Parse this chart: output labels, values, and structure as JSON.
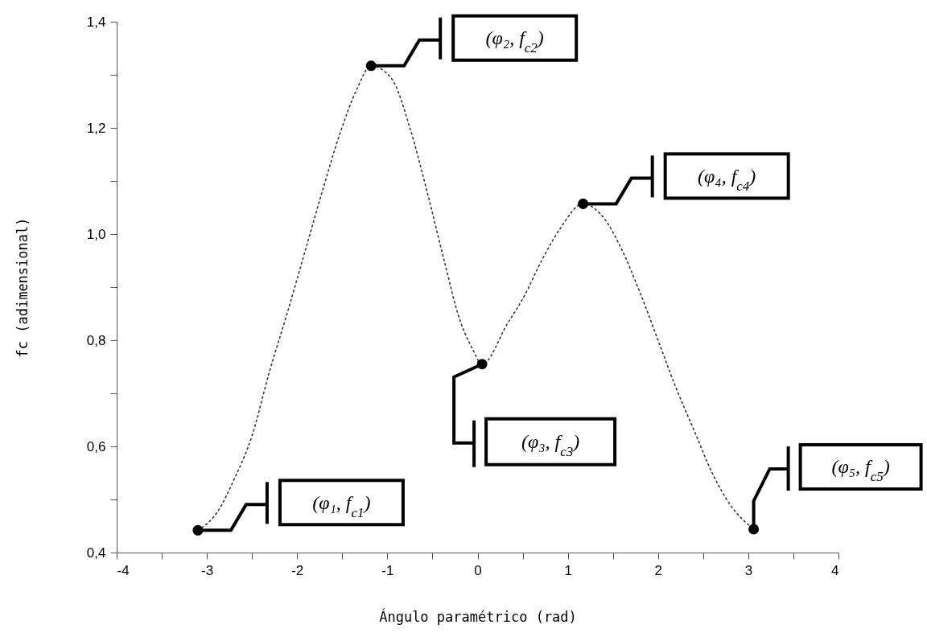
{
  "chart_data": {
    "type": "line",
    "xlabel": "Ángulo paramétrico (rad)",
    "ylabel": "fc (adimensional)",
    "xlim": [
      -4,
      4
    ],
    "xticks": [
      -4,
      {
        "value": -3.5,
        "label": null
      },
      -3,
      {
        "value": -2.5,
        "label": null
      },
      -2,
      {
        "value": -1.5,
        "label": null
      },
      -1,
      {
        "value": -0.5,
        "label": null
      },
      0,
      {
        "value": 0.5,
        "label": null
      },
      1,
      {
        "value": 1.5,
        "label": null
      },
      2,
      {
        "value": 2.5,
        "label": null
      },
      3,
      {
        "value": 3.5,
        "label": null
      },
      4
    ],
    "ylim": [
      0.4,
      1.4
    ],
    "yticks": [
      {
        "value": 0.4,
        "label": "0,4"
      },
      {
        "value": 0.5,
        "label": null
      },
      {
        "value": 0.6,
        "label": "0,6"
      },
      {
        "value": 0.7,
        "label": null
      },
      {
        "value": 0.8,
        "label": "0,8"
      },
      {
        "value": 0.9,
        "label": null
      },
      {
        "value": 1.0,
        "label": "1,0"
      },
      {
        "value": 1.1,
        "label": null
      },
      {
        "value": 1.2,
        "label": "1,2"
      },
      {
        "value": 1.3,
        "label": null
      },
      {
        "value": 1.4,
        "label": "1,4"
      }
    ],
    "grid": false,
    "series": [
      {
        "type": "line",
        "color": "#333333",
        "line_style": "dotted",
        "marker": "none",
        "x": [
          -3.1,
          -2.89,
          -2.69,
          -2.5,
          -2.31,
          -2.11,
          -1.92,
          -1.72,
          -1.53,
          -1.34,
          -1.18,
          -0.95,
          -0.75,
          -0.56,
          -0.37,
          -0.2,
          -0.06,
          0.05,
          0.33,
          0.52,
          0.71,
          0.91,
          1.17,
          1.4,
          1.6,
          1.8,
          2.0,
          2.2,
          2.4,
          2.6,
          2.8,
          3.06
        ],
        "values": [
          0.442,
          0.475,
          0.541,
          0.62,
          0.739,
          0.851,
          0.963,
          1.081,
          1.187,
          1.272,
          1.317,
          1.292,
          1.2,
          1.08,
          0.95,
          0.84,
          0.785,
          0.755,
          0.831,
          0.884,
          0.95,
          1.009,
          1.057,
          1.03,
          0.97,
          0.89,
          0.8,
          0.71,
          0.63,
          0.55,
          0.49,
          0.444
        ]
      },
      {
        "type": "scatter",
        "color": "#000000",
        "marker": "circle",
        "x": [
          -3.1,
          -1.18,
          0.05,
          1.17,
          3.06
        ],
        "values": [
          0.442,
          1.317,
          0.755,
          1.057,
          0.444
        ]
      }
    ],
    "annotations": [
      "(φ₁, f$_{c1}$)",
      "(φ₂, f$_{c2}$)",
      "(φ₃, f$_{c3}$)",
      "(φ₄, f$_{c4}$)",
      "(φ₅, f$_{c5}$)"
    ]
  }
}
